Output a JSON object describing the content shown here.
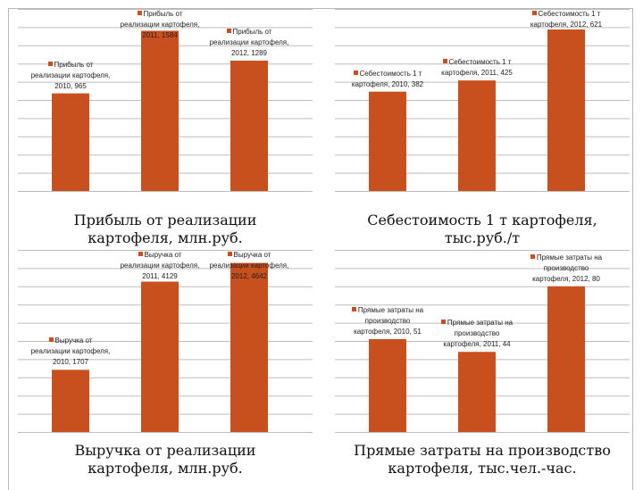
{
  "theme": {
    "bar_color": "#c8501e",
    "grid_color": "#bdbdbd"
  },
  "chart_data": [
    {
      "type": "bar",
      "title": "Прибыль от реализации картофеля, млн.руб.",
      "categories": [
        "2010",
        "2011",
        "2012"
      ],
      "values": [
        965,
        1584,
        1289
      ],
      "ylim": [
        0,
        1800
      ],
      "grid": true,
      "data_labels": [
        "Прибыль от реализации картофеля, 2010, 965",
        "Прибыль от реализации картофеля, 2011, 1584",
        "Прибыль от реализации картофеля, 2012, 1289"
      ]
    },
    {
      "type": "bar",
      "title": "Себестоимость 1 т картофеля, тыс.руб./т",
      "categories": [
        "2010",
        "2011",
        "2012"
      ],
      "values": [
        382,
        425,
        621
      ],
      "ylim": [
        0,
        700
      ],
      "grid": true,
      "data_labels": [
        "Себестоимость 1 т картофеля, 2010, 382",
        "Себестоимость 1 т картофеля, 2011, 425",
        "Себестоимость 1 т картофеля, 2012, 621"
      ]
    },
    {
      "type": "bar",
      "title": "Выручка от реализации картофеля, млн.руб.",
      "categories": [
        "2010",
        "2011",
        "2012"
      ],
      "values": [
        1707,
        4129,
        4642
      ],
      "ylim": [
        0,
        5000
      ],
      "grid": true,
      "data_labels": [
        "Выручка от реализации картофеля, 2010, 1707",
        "Выручка от реализации картофеля, 2011, 4129",
        "Выручка от реализации картофеля, 2012, 4642"
      ]
    },
    {
      "type": "bar",
      "title": "Прямые затраты на производство картофеля, тыс.чел.-час.",
      "categories": [
        "2010",
        "2011",
        "2012"
      ],
      "values": [
        51,
        44,
        80
      ],
      "ylim": [
        0,
        100
      ],
      "grid": true,
      "data_labels": [
        "Прямые затраты на производство картофеля, 2010, 51",
        "Прямые затраты на производство картофеля, 2011, 44",
        "Прямые затраты на производство картофеля, 2012, 80"
      ]
    }
  ]
}
